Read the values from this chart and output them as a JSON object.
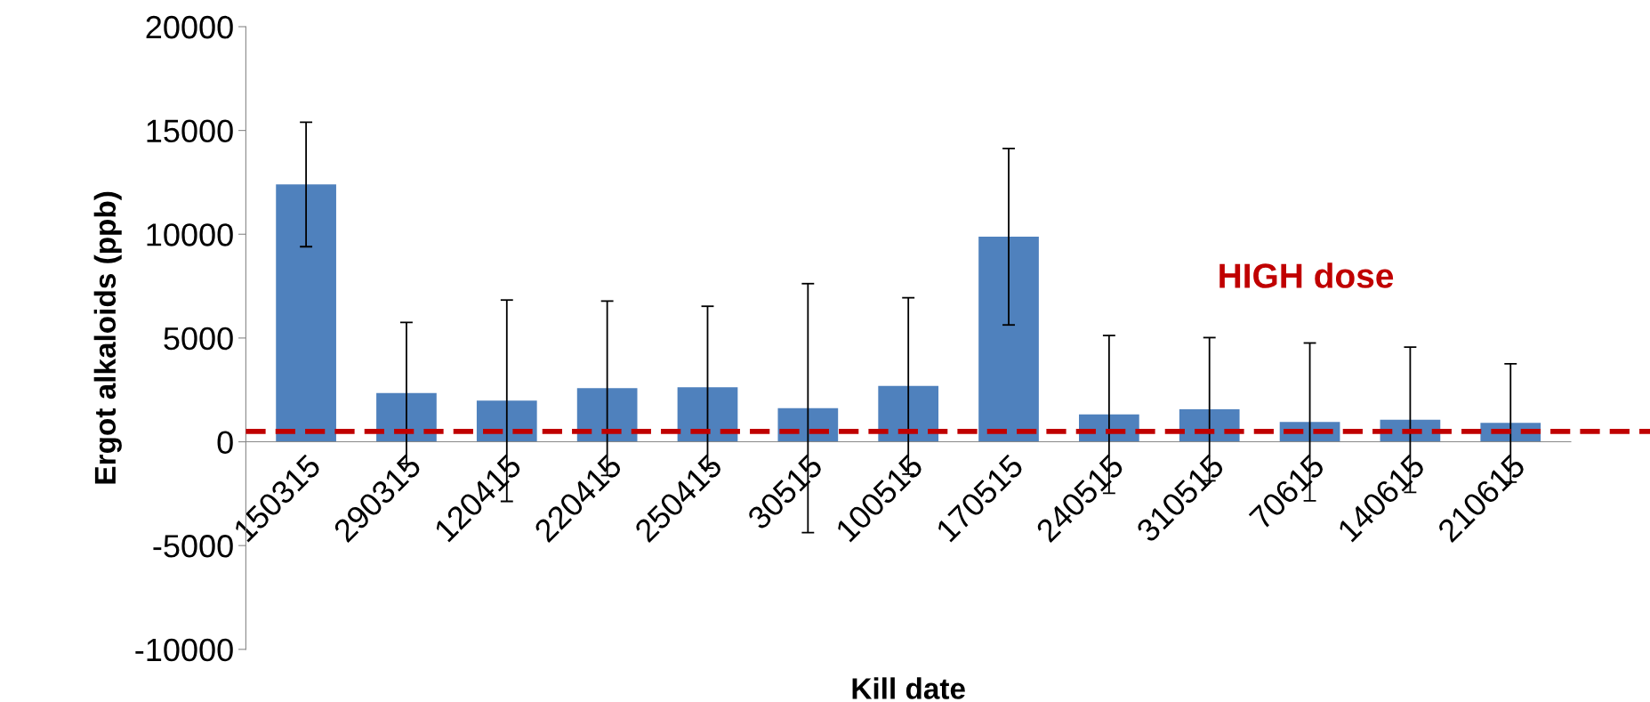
{
  "chart_data": {
    "type": "bar",
    "xlabel": "Kill date",
    "ylabel": "Ergot alkaloids (ppb)",
    "categories": [
      "150315",
      "290315",
      "120415",
      "220415",
      "250415",
      "30515",
      "100515",
      "170515",
      "240515",
      "310515",
      "70615",
      "140615",
      "210615"
    ],
    "values": [
      12400,
      2350,
      1980,
      2580,
      2630,
      1620,
      2690,
      9880,
      1320,
      1570,
      960,
      1060,
      910
    ],
    "errors": [
      3000,
      3400,
      4850,
      4200,
      3900,
      6000,
      4250,
      4250,
      3800,
      3450,
      3800,
      3500,
      2850
    ],
    "color": "#4f81bd",
    "ylim": [
      -10000,
      20000
    ],
    "yticks": [
      -10000,
      -5000,
      0,
      5000,
      10000,
      15000,
      20000
    ],
    "ref_lines": [
      {
        "axis": "y",
        "value": 500,
        "label": "HIGH dose",
        "color": "#c00000",
        "line_style": "dashed"
      }
    ],
    "grid": false,
    "legend": false
  }
}
